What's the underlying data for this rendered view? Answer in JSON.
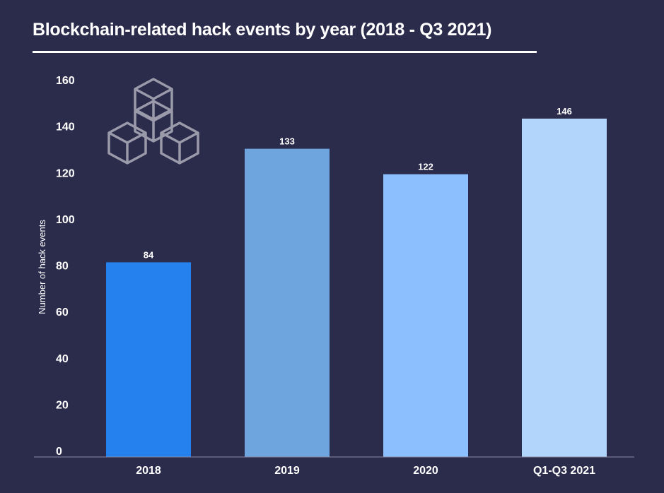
{
  "page": {
    "background": "#2b2b4b"
  },
  "decoration": {
    "icon": "blockchain-cubes-icon",
    "color": "#9a9aab"
  },
  "chart_data": {
    "type": "bar",
    "title": "Blockchain-related hack events by year (2018 - Q3 2021)",
    "xlabel": "",
    "ylabel": "Number of hack events",
    "categories": [
      "2018",
      "2019",
      "2020",
      "Q1-Q3 2021"
    ],
    "values": [
      84,
      133,
      122,
      146
    ],
    "data_labels": [
      "84",
      "133",
      "122",
      "146"
    ],
    "bar_colors": [
      "#2481ee",
      "#6fa5df",
      "#8cbffd",
      "#b2d5fb"
    ],
    "ylim": [
      0,
      160
    ],
    "yticks": [
      0,
      20,
      40,
      60,
      80,
      100,
      120,
      140,
      160
    ],
    "grid": false,
    "legend": "none"
  }
}
